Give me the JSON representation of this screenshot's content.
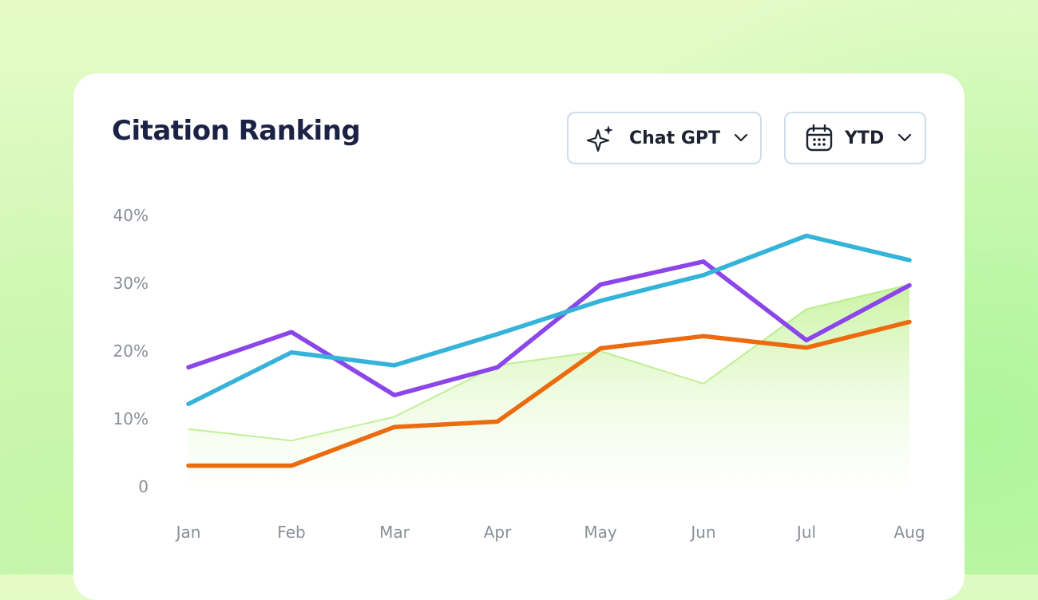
{
  "header": {
    "title": "Citation Ranking"
  },
  "filters": {
    "model": {
      "label": "Chat GPT",
      "icon": "sparkle-icon"
    },
    "range": {
      "label": "YTD",
      "icon": "calendar-icon"
    }
  },
  "colors": {
    "purple": "#8b45ea",
    "blue": "#36b3d9",
    "orange": "#ec6b0f",
    "area": "#a8ea70"
  },
  "chart_data": {
    "type": "line",
    "categories": [
      "Jan",
      "Feb",
      "Mar",
      "Apr",
      "May",
      "Jun",
      "Jul",
      "Aug"
    ],
    "y_ticks": [
      "40%",
      "30%",
      "20%",
      "10%",
      "0"
    ],
    "y_tick_values": [
      40,
      30,
      20,
      10,
      0
    ],
    "ylim": [
      0,
      40
    ],
    "grid": false,
    "legend": "none",
    "series": [
      {
        "type": "area",
        "color": "#a8ea70",
        "values": [
          8.5,
          6.8,
          10.3,
          17.9,
          20.0,
          15.2,
          26.2,
          29.8
        ]
      },
      {
        "type": "line",
        "color": "#8b45ea",
        "values": [
          17.6,
          22.8,
          13.5,
          17.6,
          29.8,
          33.2,
          21.6,
          29.7
        ]
      },
      {
        "type": "line",
        "color": "#36b3d9",
        "values": [
          12.2,
          19.8,
          17.9,
          22.5,
          27.4,
          31.2,
          37.0,
          33.4
        ]
      },
      {
        "type": "line",
        "color": "#ec6b0f",
        "values": [
          3.1,
          3.1,
          8.8,
          9.6,
          20.4,
          22.2,
          20.5,
          24.3
        ]
      }
    ]
  }
}
